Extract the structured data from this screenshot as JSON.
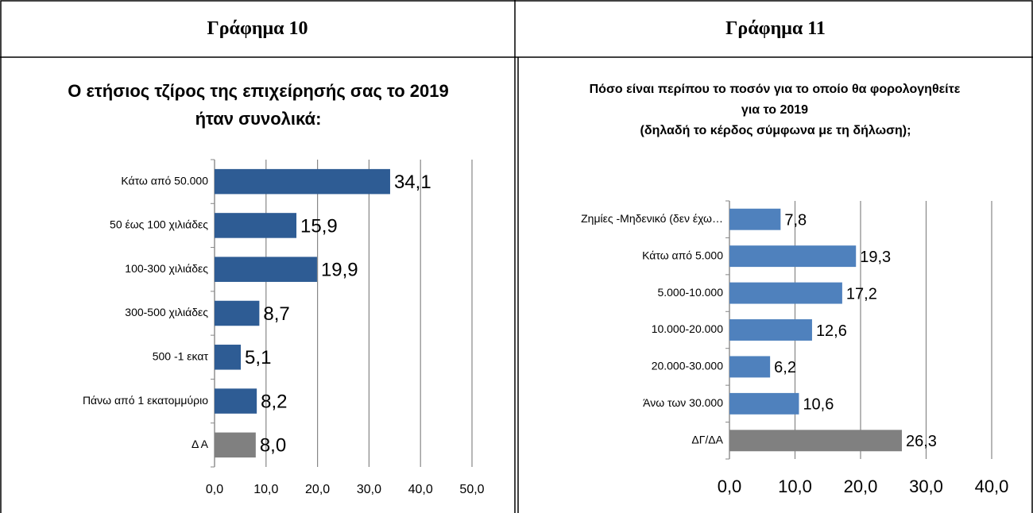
{
  "table": {
    "headers": [
      "Γράφημα 10",
      "Γράφημα 11"
    ]
  },
  "chart_data": [
    {
      "type": "bar",
      "orientation": "horizontal",
      "title": "Ο ετήσιος τζίρος της επιχείρησής σας το 2019 ήταν συνολικά:",
      "categories": [
        "Κάτω από 50.000",
        "50 έως 100 χιλιάδες",
        "100-300 χιλιάδες",
        "300-500 χιλιάδες",
        "500 -1 εκατ",
        "Πάνω από 1 εκατομμύριο",
        "Δ Α"
      ],
      "values": [
        34.1,
        15.9,
        19.9,
        8.7,
        5.1,
        8.2,
        8.0
      ],
      "value_labels": [
        "34,1",
        "15,9",
        "19,9",
        "8,7",
        "5,1",
        "8,2",
        "8,0"
      ],
      "colors": [
        "#2e5c94",
        "#2e5c94",
        "#2e5c94",
        "#2e5c94",
        "#2e5c94",
        "#2e5c94",
        "#808080"
      ],
      "xlim": [
        0,
        50
      ],
      "xticks": [
        {
          "value": 0,
          "label": "0,0"
        },
        {
          "value": 10,
          "label": "10,0"
        },
        {
          "value": 20,
          "label": "20,0"
        },
        {
          "value": 30,
          "label": "30,0"
        },
        {
          "value": 40,
          "label": "40,0"
        },
        {
          "value": 50,
          "label": "50,0"
        }
      ],
      "grid": true
    },
    {
      "type": "bar",
      "orientation": "horizontal",
      "title": "Πόσο είναι περίπου το ποσόν για το οποίο θα φορολογηθείτε για το 2019",
      "subtitle": "(δηλαδή το κέρδος σύμφωνα με τη δήλωση);",
      "categories": [
        "Ζημίες -Μηδενικό (δεν έχω…",
        "Κάτω από 5.000",
        "5.000-10.000",
        "10.000-20.000",
        "20.000-30.000",
        "Άνω των 30.000",
        "ΔΓ/ΔΑ"
      ],
      "values": [
        7.8,
        19.3,
        17.2,
        12.6,
        6.2,
        10.6,
        26.3
      ],
      "value_labels": [
        "7,8",
        "19,3",
        "17,2",
        "12,6",
        "6,2",
        "10,6",
        "26,3"
      ],
      "colors": [
        "#4f81bd",
        "#4f81bd",
        "#4f81bd",
        "#4f81bd",
        "#4f81bd",
        "#4f81bd",
        "#808080"
      ],
      "xlim": [
        0,
        40
      ],
      "xticks": [
        {
          "value": 0,
          "label": "0,0"
        },
        {
          "value": 10,
          "label": "10,0"
        },
        {
          "value": 20,
          "label": "20,0"
        },
        {
          "value": 30,
          "label": "30,0"
        },
        {
          "value": 40,
          "label": "40,0"
        }
      ],
      "grid": true
    }
  ]
}
